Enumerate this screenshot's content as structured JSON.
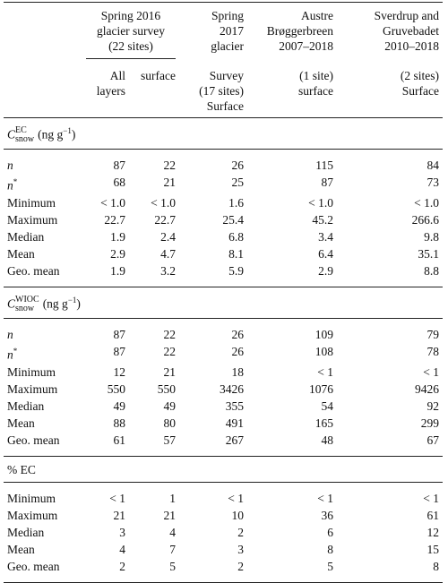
{
  "header": {
    "group": [
      "Spring 2016",
      "glacier survey",
      "(22 sites)"
    ],
    "sub1": [
      "All",
      "layers"
    ],
    "sub2": [
      "surface"
    ],
    "col4_top": [
      "Spring",
      "2017",
      "glacier"
    ],
    "col4_bottom": [
      "Survey",
      "(17 sites)",
      "Surface"
    ],
    "col5_top": [
      "Austre",
      "Brøggerbreen",
      "2007–2018"
    ],
    "col5_bottom": [
      "(1 site)",
      "surface"
    ],
    "col6_top": [
      "Sverdrup and",
      "Gruvebadet",
      "2010–2018"
    ],
    "col6_bottom": [
      "(2 sites)",
      "Surface"
    ]
  },
  "sections": [
    {
      "title": {
        "base": "C",
        "sub": "snow",
        "sup": "EC",
        "unit": "(ng g",
        "unit_sup": "−1",
        "close": ")"
      },
      "rows": [
        {
          "label": "n",
          "italic": true,
          "values": [
            "87",
            "22",
            "26",
            "115",
            "84"
          ]
        },
        {
          "label": "n",
          "italic": true,
          "sup": "*",
          "values": [
            "68",
            "21",
            "25",
            "87",
            "73"
          ]
        },
        {
          "label": "Minimum",
          "values": [
            "< 1.0",
            "< 1.0",
            "1.6",
            "< 1.0",
            "< 1.0"
          ]
        },
        {
          "label": "Maximum",
          "values": [
            "22.7",
            "22.7",
            "25.4",
            "45.2",
            "266.6"
          ]
        },
        {
          "label": "Median",
          "values": [
            "1.9",
            "2.4",
            "6.8",
            "3.4",
            "9.8"
          ]
        },
        {
          "label": "Mean",
          "values": [
            "2.9",
            "4.7",
            "8.1",
            "6.4",
            "35.1"
          ]
        },
        {
          "label": "Geo. mean",
          "values": [
            "1.9",
            "3.2",
            "5.9",
            "2.9",
            "8.8"
          ]
        }
      ]
    },
    {
      "title": {
        "base": "C",
        "sub": "snow",
        "sup": "WIOC",
        "unit": "(ng g",
        "unit_sup": "−1",
        "close": ")"
      },
      "rows": [
        {
          "label": "n",
          "italic": true,
          "values": [
            "87",
            "22",
            "26",
            "109",
            "79"
          ]
        },
        {
          "label": "n",
          "italic": true,
          "sup": "*",
          "values": [
            "87",
            "22",
            "26",
            "108",
            "78"
          ]
        },
        {
          "label": "Minimum",
          "values": [
            "12",
            "21",
            "18",
            "< 1",
            "< 1"
          ]
        },
        {
          "label": "Maximum",
          "values": [
            "550",
            "550",
            "3426",
            "1076",
            "9426"
          ]
        },
        {
          "label": "Median",
          "values": [
            "49",
            "49",
            "355",
            "54",
            "92"
          ]
        },
        {
          "label": "Mean",
          "values": [
            "88",
            "80",
            "491",
            "165",
            "299"
          ]
        },
        {
          "label": "Geo. mean",
          "values": [
            "61",
            "57",
            "267",
            "48",
            "67"
          ]
        }
      ]
    },
    {
      "title": {
        "text": "% EC"
      },
      "rows": [
        {
          "label": "Minimum",
          "values": [
            "< 1",
            "1",
            "< 1",
            "< 1",
            "< 1"
          ]
        },
        {
          "label": "Maximum",
          "values": [
            "21",
            "21",
            "10",
            "36",
            "61"
          ]
        },
        {
          "label": "Median",
          "values": [
            "3",
            "4",
            "2",
            "6",
            "12"
          ]
        },
        {
          "label": "Mean",
          "values": [
            "4",
            "7",
            "3",
            "8",
            "15"
          ]
        },
        {
          "label": "Geo. mean",
          "values": [
            "2",
            "5",
            "2",
            "5",
            "8"
          ]
        }
      ]
    }
  ]
}
